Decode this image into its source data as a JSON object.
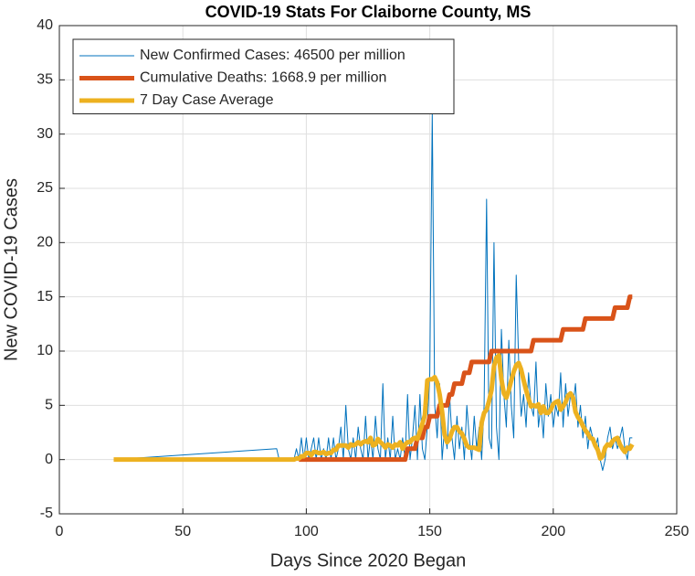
{
  "chart_data": {
    "type": "line",
    "title": "COVID-19 Stats For Claiborne County, MS",
    "x_label": "Days Since 2020 Began",
    "y_label": "New COVID-19 Cases",
    "xlim": [
      0,
      250
    ],
    "xticks": [
      0,
      50,
      100,
      150,
      200,
      250
    ],
    "ylim": [
      -5,
      40
    ],
    "yticks": [
      -5,
      0,
      5,
      10,
      15,
      20,
      25,
      30,
      35,
      40
    ],
    "grid": true,
    "legend": "northwest",
    "x": [
      22,
      88,
      89,
      90,
      91,
      92,
      93,
      94,
      95,
      96,
      97,
      98,
      99,
      100,
      101,
      102,
      103,
      104,
      105,
      106,
      107,
      108,
      109,
      110,
      111,
      112,
      113,
      114,
      115,
      116,
      117,
      118,
      119,
      120,
      121,
      122,
      123,
      124,
      125,
      126,
      127,
      128,
      129,
      130,
      131,
      132,
      133,
      134,
      135,
      136,
      137,
      138,
      139,
      140,
      141,
      142,
      143,
      144,
      145,
      146,
      147,
      148,
      149,
      150,
      151,
      152,
      153,
      154,
      155,
      156,
      157,
      158,
      159,
      160,
      161,
      162,
      163,
      164,
      165,
      166,
      167,
      168,
      169,
      170,
      171,
      172,
      173,
      174,
      175,
      176,
      177,
      178,
      179,
      180,
      181,
      182,
      183,
      184,
      185,
      186,
      187,
      188,
      189,
      190,
      191,
      192,
      193,
      194,
      195,
      196,
      197,
      198,
      199,
      200,
      201,
      202,
      203,
      204,
      205,
      206,
      207,
      208,
      209,
      210,
      211,
      212,
      213,
      214,
      215,
      216,
      217,
      218,
      219,
      220,
      221,
      222,
      223,
      224,
      225,
      226,
      227,
      228,
      229,
      230,
      231,
      232
    ],
    "series": [
      {
        "name": "New Confirmed Cases: 46500 per million",
        "color": "#0072BD",
        "values": [
          0,
          1,
          0,
          0,
          0,
          0,
          0,
          0,
          0,
          1,
          0,
          2,
          0,
          2,
          0,
          1,
          2,
          0,
          2,
          0,
          1,
          0,
          2,
          0,
          2,
          0,
          1,
          3,
          0,
          5,
          1,
          0,
          2,
          0,
          3,
          1,
          0,
          4,
          0,
          2,
          0,
          4,
          1,
          0,
          7,
          0,
          2,
          0,
          4,
          0,
          1,
          0,
          2,
          0,
          6,
          0,
          2,
          5,
          0,
          6,
          1,
          0,
          3,
          8,
          32,
          5,
          2,
          7,
          0,
          3,
          1,
          6,
          2,
          0,
          4,
          1,
          3,
          0,
          5,
          2,
          0,
          4,
          1,
          3,
          0,
          5,
          24,
          2,
          1,
          20,
          3,
          0,
          12,
          6,
          3,
          11,
          5,
          2,
          17,
          9,
          4,
          6,
          3,
          8,
          5,
          4,
          9,
          3,
          5,
          2,
          7,
          4,
          6,
          3,
          5,
          4,
          8,
          3,
          7,
          4,
          6,
          5,
          7,
          3,
          5,
          2,
          4,
          1,
          3,
          2,
          1,
          2,
          0,
          -1,
          0,
          2,
          3,
          1,
          2,
          1,
          2,
          3,
          1,
          0,
          2,
          2
        ]
      },
      {
        "name": "Cumulative Deaths: 1668.9 per million",
        "color": "#D95319",
        "values": [
          null,
          null,
          null,
          null,
          null,
          null,
          null,
          null,
          null,
          null,
          0,
          0,
          0,
          0,
          0,
          0,
          0,
          0,
          0,
          0,
          0,
          0,
          0,
          0,
          0,
          0,
          0,
          0,
          0,
          0,
          0,
          0,
          0,
          0,
          0,
          0,
          0,
          0,
          0,
          0,
          0,
          0,
          0,
          0,
          0,
          0,
          0,
          0,
          0,
          0,
          0,
          0,
          0,
          0,
          1,
          1,
          1,
          1,
          2,
          2,
          2,
          3,
          3,
          4,
          4,
          4,
          4,
          5,
          5,
          5,
          5,
          6,
          6,
          7,
          7,
          7,
          7,
          8,
          8,
          8,
          9,
          9,
          9,
          9,
          9,
          9,
          9,
          9,
          10,
          10,
          10,
          10,
          10,
          10,
          10,
          10,
          10,
          10,
          10,
          10,
          10,
          10,
          10,
          10,
          10,
          11,
          11,
          11,
          11,
          11,
          11,
          11,
          11,
          11,
          11,
          11,
          11,
          12,
          12,
          12,
          12,
          12,
          12,
          12,
          12,
          12,
          13,
          13,
          13,
          13,
          13,
          13,
          13,
          13,
          13,
          13,
          13,
          13,
          14,
          14,
          14,
          14,
          14,
          14,
          15,
          15
        ]
      },
      {
        "name": "7 Day Case Average",
        "color": "#EDB120",
        "values": [
          0,
          0,
          0,
          0,
          0,
          0,
          0,
          0,
          0,
          0.1,
          0.1,
          0.3,
          0.3,
          0.6,
          0.6,
          0.4,
          0.7,
          0.7,
          0.6,
          0.6,
          0.7,
          0.5,
          0.6,
          0.6,
          0.9,
          0.9,
          1.3,
          1.3,
          1.3,
          1.3,
          1.1,
          1.4,
          1.3,
          1.4,
          1.6,
          1.4,
          1.6,
          1.7,
          1.6,
          2,
          1.3,
          1.4,
          1.9,
          1.6,
          1.4,
          1.1,
          1.4,
          1.3,
          1.1,
          1.4,
          1.3,
          1.6,
          1,
          1.4,
          1.6,
          1.6,
          1.9,
          2,
          1.9,
          2.6,
          3.3,
          4.1,
          7.3,
          7.4,
          7.4,
          7.6,
          7.1,
          6,
          4.4,
          2.3,
          1.6,
          1.9,
          2.6,
          3,
          3,
          2.6,
          2.4,
          1.9,
          1.3,
          1.1,
          1.1,
          1.1,
          1,
          0.9,
          3.4,
          4.3,
          4.6,
          5.4,
          6.4,
          8.6,
          9.4,
          9.6,
          7.4,
          6.1,
          5.7,
          6.4,
          7.3,
          8.1,
          8.7,
          8.9,
          8.3,
          7.3,
          6.4,
          5.6,
          4.9,
          5,
          4.9,
          5.1,
          4.3,
          4.9,
          4.3,
          4.3,
          4.6,
          5.1,
          5.3,
          5.4,
          4.6,
          4.9,
          5.3,
          5.9,
          6.1,
          5.7,
          4.4,
          3.9,
          3.6,
          3.1,
          2.7,
          2.4,
          2,
          1.9,
          1.3,
          0.9,
          0.1,
          0.3,
          1.1,
          1.4,
          1.3,
          1.7,
          1.9,
          2,
          1.4,
          1,
          0.7,
          1.1,
          1,
          1.4
        ]
      }
    ]
  }
}
